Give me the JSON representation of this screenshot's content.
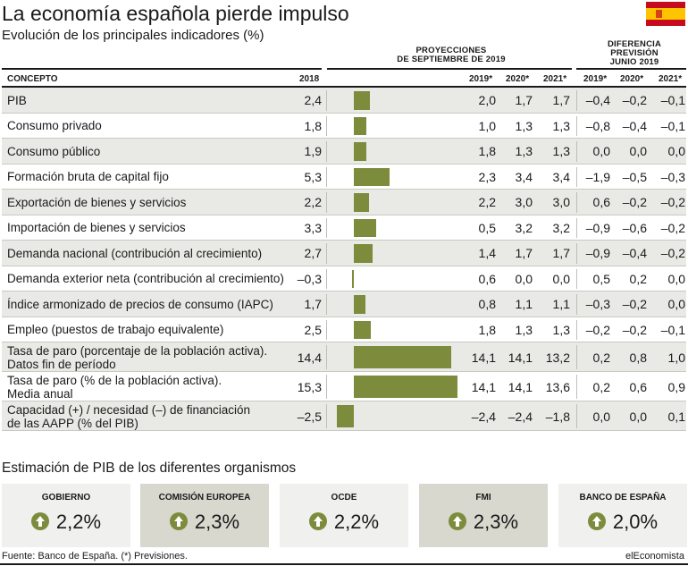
{
  "title": "La economía española pierde impulso",
  "subtitle": "Evolución de los principales indicadores (%)",
  "headers": {
    "concepto": "CONCEPTO",
    "y2018": "2018",
    "proyecciones": "PROYECCIONES",
    "proyecciones2": "DE SEPTIEMBRE DE 2019",
    "diferencia": "DIFERENCIA",
    "diferencia2": "PREVISIÓN",
    "diferencia3": "JUNIO 2019",
    "y2019": "2019*",
    "y2020": "2020*",
    "y2021": "2021*",
    "d2019": "2019*",
    "d2020": "2020*",
    "d2021": "2021*"
  },
  "chart_data": {
    "type": "table",
    "title": "La economía española pierde impulso",
    "rows": [
      {
        "label": "PIB",
        "v2018": "2,4",
        "bar": 2.4,
        "p2019": "2,0",
        "p2020": "1,7",
        "p2021": "1,7",
        "d2019": "–0,4",
        "d2020": "–0,2",
        "d2021": "–0,1"
      },
      {
        "label": "Consumo privado",
        "v2018": "1,8",
        "bar": 1.8,
        "p2019": "1,0",
        "p2020": "1,3",
        "p2021": "1,3",
        "d2019": "–0,8",
        "d2020": "–0,4",
        "d2021": "–0,1"
      },
      {
        "label": "Consumo público",
        "v2018": "1,9",
        "bar": 1.9,
        "p2019": "1,8",
        "p2020": "1,3",
        "p2021": "1,3",
        "d2019": "0,0",
        "d2020": "0,0",
        "d2021": "0,0"
      },
      {
        "label": "Formación bruta de capital fijo",
        "v2018": "5,3",
        "bar": 5.3,
        "p2019": "2,3",
        "p2020": "3,4",
        "p2021": "3,4",
        "d2019": "–1,9",
        "d2020": "–0,5",
        "d2021": "–0,3"
      },
      {
        "label": "Exportación de bienes y servicios",
        "v2018": "2,2",
        "bar": 2.2,
        "p2019": "2,2",
        "p2020": "3,0",
        "p2021": "3,0",
        "d2019": "0,6",
        "d2020": "–0,2",
        "d2021": "–0,2"
      },
      {
        "label": "Importación de bienes y servicios",
        "v2018": "3,3",
        "bar": 3.3,
        "p2019": "0,5",
        "p2020": "3,2",
        "p2021": "3,2",
        "d2019": "–0,9",
        "d2020": "–0,6",
        "d2021": "–0,2"
      },
      {
        "label": "Demanda nacional (contribución al crecimiento)",
        "v2018": "2,7",
        "bar": 2.7,
        "p2019": "1,4",
        "p2020": "1,7",
        "p2021": "1,7",
        "d2019": "–0,9",
        "d2020": "–0,4",
        "d2021": "–0,2"
      },
      {
        "label": "Demanda exterior neta (contribución al crecimiento)",
        "v2018": "–0,3",
        "bar": -0.3,
        "p2019": "0,6",
        "p2020": "0,0",
        "p2021": "0,0",
        "d2019": "0,5",
        "d2020": "0,2",
        "d2021": "0,0"
      },
      {
        "label": "Índice armonizado de precios de consumo (IAPC)",
        "v2018": "1,7",
        "bar": 1.7,
        "p2019": "0,8",
        "p2020": "1,1",
        "p2021": "1,1",
        "d2019": "–0,3",
        "d2020": "–0,2",
        "d2021": "0,0"
      },
      {
        "label": "Empleo (puestos de trabajo equivalente)",
        "v2018": "2,5",
        "bar": 2.5,
        "p2019": "1,8",
        "p2020": "1,3",
        "p2021": "1,3",
        "d2019": "–0,2",
        "d2020": "–0,2",
        "d2021": "–0,1"
      },
      {
        "label": "Tasa de paro (porcentaje de la población activa).",
        "label2": "Datos fin de período",
        "v2018": "14,4",
        "bar": 14.4,
        "p2019": "14,1",
        "p2020": "14,1",
        "p2021": "13,2",
        "d2019": "0,2",
        "d2020": "0,8",
        "d2021": "1,0"
      },
      {
        "label": "Tasa de paro (% de la población activa).",
        "label2": "Media anual",
        "v2018": "15,3",
        "bar": 15.3,
        "p2019": "14,1",
        "p2020": "14,1",
        "p2021": "13,6",
        "d2019": "0,2",
        "d2020": "0,6",
        "d2021": "0,9"
      },
      {
        "label": "Capacidad (+) / necesidad (–) de financiación",
        "label2": "de las AAPP (% del PIB)",
        "v2018": "–2,5",
        "bar": -2.5,
        "p2019": "–2,4",
        "p2020": "–2,4",
        "p2021": "–1,8",
        "d2019": "0,0",
        "d2020": "0,0",
        "d2021": "0,1"
      }
    ],
    "bar_color": "#7d8c3c"
  },
  "pib_section": {
    "title": "Estimación de PIB de los diferentes organismos",
    "cards": [
      {
        "name": "GOBIERNO",
        "value": "2,2%"
      },
      {
        "name": "COMISIÓN EUROPEA",
        "value": "2,3%"
      },
      {
        "name": "OCDE",
        "value": "2,2%"
      },
      {
        "name": "FMI",
        "value": "2,3%"
      },
      {
        "name": "BANCO DE ESPAÑA",
        "value": "2,0%"
      }
    ]
  },
  "footer": {
    "source": "Fuente: Banco de España. (*) Previsiones.",
    "brand": "elEconomista"
  },
  "colors": {
    "bar": "#7d8c3c",
    "shade": "#e9e9e5",
    "flag_red": "#c60b1e",
    "flag_yellow": "#ffc400"
  }
}
